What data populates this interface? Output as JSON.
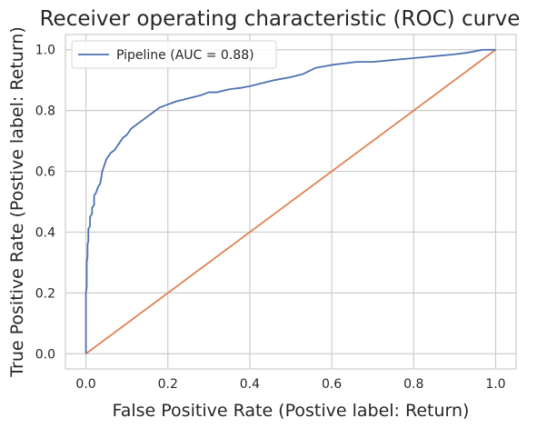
{
  "chart_data": {
    "type": "line",
    "title": "Receiver operating characteristic (ROC) curve",
    "xlabel": "False Positive Rate (Postive label: Return)",
    "ylabel": "True Positive Rate (Postive label: Return)",
    "xlim": [
      -0.05,
      1.05
    ],
    "ylim": [
      -0.05,
      1.05
    ],
    "xticks": [
      0.0,
      0.2,
      0.4,
      0.6,
      0.8,
      1.0
    ],
    "yticks": [
      0.0,
      0.2,
      0.4,
      0.6,
      0.8,
      1.0
    ],
    "xtick_labels": [
      "0.0",
      "0.2",
      "0.4",
      "0.6",
      "0.8",
      "1.0"
    ],
    "ytick_labels": [
      "0.0",
      "0.2",
      "0.4",
      "0.6",
      "0.8",
      "1.0"
    ],
    "grid": true,
    "legend_position": "top-left",
    "series": [
      {
        "name": "Pipeline (AUC = 0.88)",
        "color": "#4c72b0",
        "x": [
          0.0,
          0.0,
          0.002,
          0.002,
          0.004,
          0.004,
          0.006,
          0.006,
          0.01,
          0.01,
          0.015,
          0.015,
          0.02,
          0.02,
          0.025,
          0.03,
          0.035,
          0.04,
          0.045,
          0.05,
          0.055,
          0.06,
          0.07,
          0.08,
          0.09,
          0.1,
          0.11,
          0.12,
          0.13,
          0.14,
          0.15,
          0.16,
          0.17,
          0.18,
          0.2,
          0.22,
          0.25,
          0.28,
          0.3,
          0.32,
          0.35,
          0.38,
          0.4,
          0.43,
          0.46,
          0.5,
          0.53,
          0.56,
          0.6,
          0.63,
          0.66,
          0.7,
          0.74,
          0.78,
          0.82,
          0.86,
          0.9,
          0.93,
          0.95,
          0.97,
          1.0
        ],
        "y": [
          0.0,
          0.2,
          0.22,
          0.3,
          0.32,
          0.36,
          0.37,
          0.41,
          0.42,
          0.45,
          0.46,
          0.48,
          0.49,
          0.52,
          0.53,
          0.55,
          0.56,
          0.6,
          0.62,
          0.64,
          0.65,
          0.66,
          0.67,
          0.69,
          0.71,
          0.72,
          0.74,
          0.75,
          0.76,
          0.77,
          0.78,
          0.79,
          0.8,
          0.81,
          0.82,
          0.83,
          0.84,
          0.85,
          0.86,
          0.86,
          0.87,
          0.875,
          0.88,
          0.89,
          0.9,
          0.91,
          0.92,
          0.94,
          0.95,
          0.955,
          0.96,
          0.96,
          0.965,
          0.97,
          0.975,
          0.98,
          0.985,
          0.99,
          0.995,
          1.0,
          1.0
        ]
      },
      {
        "name": "",
        "color": "#dd8452",
        "x": [
          0.0,
          1.0
        ],
        "y": [
          0.0,
          1.0
        ]
      }
    ]
  }
}
